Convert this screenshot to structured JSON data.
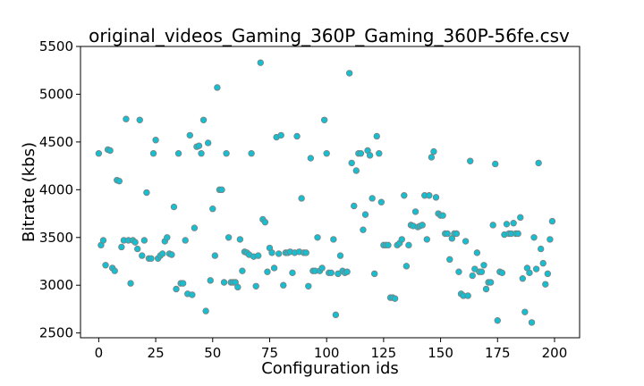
{
  "chart_data": {
    "type": "scatter",
    "title": "original_videos_Gaming_360P_Gaming_360P-56fe.csv",
    "xlabel": "Configuration ids",
    "ylabel": "Bitrate (kbs)",
    "xlim": [
      -8,
      211
    ],
    "ylim": [
      2450,
      5500
    ],
    "xticks": [
      0,
      25,
      50,
      75,
      100,
      125,
      150,
      175,
      200
    ],
    "yticks": [
      2500,
      3000,
      3500,
      4000,
      4500,
      5000,
      5500
    ],
    "grid": false,
    "marker_color": "#17becf",
    "marker_edge_color": "#7f7f7f",
    "points": [
      [
        0,
        4380
      ],
      [
        1,
        3420
      ],
      [
        2,
        3470
      ],
      [
        3,
        3210
      ],
      [
        4,
        4420
      ],
      [
        5,
        4410
      ],
      [
        6,
        3180
      ],
      [
        7,
        3150
      ],
      [
        8,
        4100
      ],
      [
        9,
        4090
      ],
      [
        10,
        3400
      ],
      [
        11,
        3470
      ],
      [
        12,
        4740
      ],
      [
        13,
        3470
      ],
      [
        14,
        3020
      ],
      [
        15,
        3470
      ],
      [
        16,
        3450
      ],
      [
        17,
        3380
      ],
      [
        18,
        4730
      ],
      [
        19,
        3310
      ],
      [
        20,
        3470
      ],
      [
        21,
        3970
      ],
      [
        22,
        3280
      ],
      [
        23,
        3280
      ],
      [
        24,
        4380
      ],
      [
        25,
        4520
      ],
      [
        26,
        3280
      ],
      [
        27,
        3310
      ],
      [
        28,
        3330
      ],
      [
        29,
        3460
      ],
      [
        30,
        3500
      ],
      [
        31,
        3330
      ],
      [
        32,
        3320
      ],
      [
        33,
        3820
      ],
      [
        34,
        2960
      ],
      [
        35,
        4380
      ],
      [
        36,
        3020
      ],
      [
        37,
        3020
      ],
      [
        38,
        3470
      ],
      [
        39,
        2910
      ],
      [
        40,
        4570
      ],
      [
        41,
        2900
      ],
      [
        42,
        3600
      ],
      [
        43,
        4450
      ],
      [
        44,
        4460
      ],
      [
        45,
        4380
      ],
      [
        46,
        4730
      ],
      [
        47,
        2730
      ],
      [
        48,
        4490
      ],
      [
        49,
        3050
      ],
      [
        50,
        3800
      ],
      [
        51,
        3310
      ],
      [
        52,
        5070
      ],
      [
        53,
        4000
      ],
      [
        54,
        4000
      ],
      [
        55,
        3030
      ],
      [
        56,
        4380
      ],
      [
        57,
        3500
      ],
      [
        58,
        3030
      ],
      [
        59,
        3030
      ],
      [
        60,
        3030
      ],
      [
        61,
        2980
      ],
      [
        62,
        3480
      ],
      [
        63,
        3150
      ],
      [
        64,
        3350
      ],
      [
        65,
        3340
      ],
      [
        66,
        3320
      ],
      [
        67,
        4380
      ],
      [
        68,
        3300
      ],
      [
        69,
        2990
      ],
      [
        70,
        3310
      ],
      [
        71,
        5330
      ],
      [
        72,
        3690
      ],
      [
        73,
        3660
      ],
      [
        74,
        3140
      ],
      [
        75,
        3390
      ],
      [
        76,
        3340
      ],
      [
        77,
        3180
      ],
      [
        78,
        4550
      ],
      [
        79,
        3330
      ],
      [
        80,
        4570
      ],
      [
        81,
        3000
      ],
      [
        82,
        3340
      ],
      [
        83,
        3340
      ],
      [
        84,
        3350
      ],
      [
        85,
        3130
      ],
      [
        86,
        3340
      ],
      [
        87,
        4560
      ],
      [
        88,
        3350
      ],
      [
        89,
        3910
      ],
      [
        90,
        3340
      ],
      [
        91,
        3340
      ],
      [
        92,
        2990
      ],
      [
        93,
        4330
      ],
      [
        94,
        3150
      ],
      [
        95,
        3150
      ],
      [
        96,
        3500
      ],
      [
        97,
        3150
      ],
      [
        98,
        3180
      ],
      [
        99,
        4730
      ],
      [
        100,
        4380
      ],
      [
        101,
        3130
      ],
      [
        102,
        3130
      ],
      [
        103,
        3480
      ],
      [
        104,
        2690
      ],
      [
        105,
        3120
      ],
      [
        106,
        3310
      ],
      [
        107,
        3150
      ],
      [
        108,
        3130
      ],
      [
        109,
        3140
      ],
      [
        110,
        5220
      ],
      [
        111,
        4280
      ],
      [
        112,
        3830
      ],
      [
        113,
        4200
      ],
      [
        114,
        4380
      ],
      [
        115,
        4380
      ],
      [
        116,
        3580
      ],
      [
        117,
        3740
      ],
      [
        118,
        4410
      ],
      [
        119,
        4360
      ],
      [
        120,
        3910
      ],
      [
        121,
        3120
      ],
      [
        122,
        4560
      ],
      [
        123,
        4380
      ],
      [
        124,
        3870
      ],
      [
        125,
        3420
      ],
      [
        126,
        3420
      ],
      [
        127,
        3420
      ],
      [
        128,
        2870
      ],
      [
        129,
        2870
      ],
      [
        130,
        2860
      ],
      [
        131,
        3420
      ],
      [
        132,
        3440
      ],
      [
        133,
        3480
      ],
      [
        134,
        3940
      ],
      [
        135,
        3200
      ],
      [
        136,
        3420
      ],
      [
        137,
        3630
      ],
      [
        138,
        3620
      ],
      [
        139,
        3770
      ],
      [
        140,
        3610
      ],
      [
        141,
        3620
      ],
      [
        142,
        3630
      ],
      [
        143,
        3940
      ],
      [
        144,
        3480
      ],
      [
        145,
        3940
      ],
      [
        146,
        4340
      ],
      [
        147,
        4400
      ],
      [
        148,
        3920
      ],
      [
        149,
        3750
      ],
      [
        150,
        3730
      ],
      [
        151,
        3730
      ],
      [
        152,
        3540
      ],
      [
        153,
        3540
      ],
      [
        154,
        3270
      ],
      [
        155,
        3490
      ],
      [
        156,
        3540
      ],
      [
        157,
        3540
      ],
      [
        158,
        3140
      ],
      [
        159,
        2910
      ],
      [
        160,
        2890
      ],
      [
        161,
        3460
      ],
      [
        162,
        2890
      ],
      [
        163,
        4300
      ],
      [
        164,
        3100
      ],
      [
        165,
        3170
      ],
      [
        166,
        3340
      ],
      [
        167,
        3140
      ],
      [
        168,
        3140
      ],
      [
        169,
        3210
      ],
      [
        170,
        2960
      ],
      [
        171,
        3030
      ],
      [
        172,
        3030
      ],
      [
        173,
        3630
      ],
      [
        174,
        4270
      ],
      [
        175,
        2630
      ],
      [
        176,
        3140
      ],
      [
        177,
        3130
      ],
      [
        178,
        3530
      ],
      [
        179,
        3640
      ],
      [
        180,
        3540
      ],
      [
        181,
        3540
      ],
      [
        182,
        3650
      ],
      [
        183,
        3540
      ],
      [
        184,
        3540
      ],
      [
        185,
        3710
      ],
      [
        186,
        3070
      ],
      [
        187,
        2720
      ],
      [
        188,
        3180
      ],
      [
        189,
        3130
      ],
      [
        190,
        2610
      ],
      [
        191,
        3500
      ],
      [
        192,
        3170
      ],
      [
        193,
        4280
      ],
      [
        194,
        3380
      ],
      [
        195,
        3230
      ],
      [
        196,
        3010
      ],
      [
        197,
        3120
      ],
      [
        198,
        3480
      ],
      [
        199,
        3670
      ]
    ]
  }
}
